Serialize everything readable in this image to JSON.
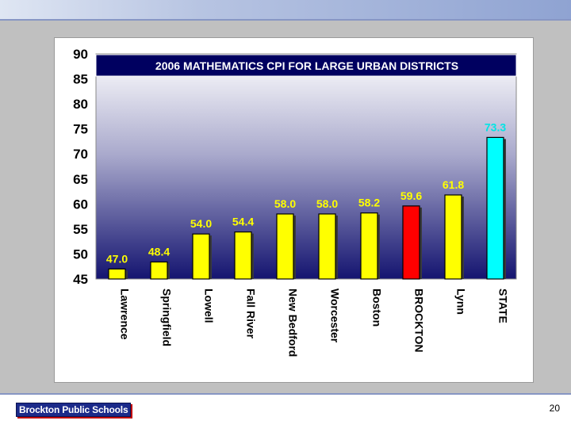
{
  "slide": {
    "footer_logo": "Brockton Public Schools",
    "page_number": "20"
  },
  "colors": {
    "bar_default": "#ffff00",
    "bar_brockton": "#ff0000",
    "bar_state": "#00ffff",
    "label_default": "#ffff00",
    "label_state": "#00e5e5",
    "plot_top": "#ffffff",
    "plot_bottom": "#141470",
    "title_box": "#000060"
  },
  "chart_data": {
    "type": "bar",
    "title": "2006 MATHEMATICS CPI FOR LARGE URBAN DISTRICTS",
    "categories": [
      "Lawrence",
      "Springfield",
      "Lowell",
      "Fall River",
      "New Bedford",
      "Worcester",
      "Boston",
      "BROCKTON",
      "Lynn",
      "STATE"
    ],
    "values": [
      47.0,
      48.4,
      54.0,
      54.4,
      58.0,
      58.0,
      58.2,
      59.6,
      61.8,
      73.3
    ],
    "value_labels": [
      "47.0",
      "48.4",
      "54.0",
      "54.4",
      "58.0",
      "58.0",
      "58.2",
      "59.6",
      "61.8",
      "73.3"
    ],
    "ylim": [
      45,
      90
    ],
    "yticks": [
      "45",
      "50",
      "55",
      "60",
      "65",
      "70",
      "75",
      "80",
      "85",
      "90"
    ],
    "highlight": {
      "BROCKTON": "bar_brockton",
      "STATE": "bar_state"
    },
    "grid": false,
    "legend": "none"
  }
}
